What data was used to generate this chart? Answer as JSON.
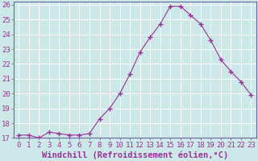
{
  "x": [
    0,
    1,
    2,
    3,
    4,
    5,
    6,
    7,
    8,
    9,
    10,
    11,
    12,
    13,
    14,
    15,
    16,
    17,
    18,
    19,
    20,
    21,
    22,
    23
  ],
  "y": [
    17.2,
    17.2,
    17.0,
    17.4,
    17.3,
    17.2,
    17.2,
    17.3,
    18.3,
    19.0,
    20.0,
    21.3,
    22.8,
    23.8,
    24.7,
    25.9,
    25.9,
    25.3,
    24.7,
    23.6,
    22.3,
    21.5,
    20.8,
    19.9
  ],
  "line_color": "#993399",
  "marker": "+",
  "marker_size": 4,
  "marker_lw": 1.0,
  "bg_color": "#cce8e8",
  "grid_color": "#ffffff",
  "xlabel": "Windchill (Refroidissement éolien,°C)",
  "ylim": [
    17,
    26
  ],
  "xlim_min": -0.5,
  "xlim_max": 23.5,
  "yticks": [
    17,
    18,
    19,
    20,
    21,
    22,
    23,
    24,
    25,
    26
  ],
  "xticks": [
    0,
    1,
    2,
    3,
    4,
    5,
    6,
    7,
    8,
    9,
    10,
    11,
    12,
    13,
    14,
    15,
    16,
    17,
    18,
    19,
    20,
    21,
    22,
    23
  ],
  "tick_color": "#993399",
  "font_size": 6.5,
  "xlabel_fontsize": 7.5,
  "label_color": "#993399",
  "line_width": 0.8,
  "spine_color": "#666699"
}
